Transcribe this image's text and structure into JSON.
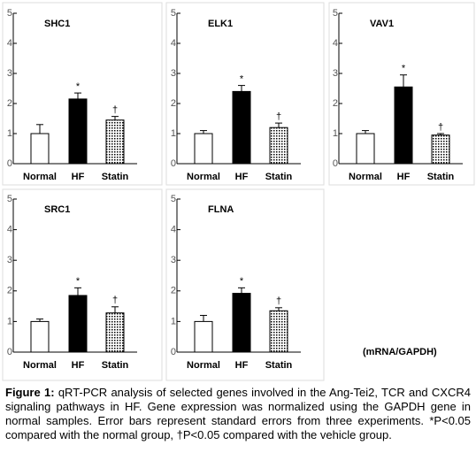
{
  "chart_data": [
    {
      "type": "bar",
      "title": "SHC1",
      "categories": [
        "Normal",
        "HF",
        "Statin"
      ],
      "values": [
        1.0,
        2.15,
        1.45
      ],
      "errors": [
        0.3,
        0.2,
        0.12
      ],
      "significance": [
        null,
        "*",
        "†"
      ],
      "colors": [
        "#ffffff",
        "#000000",
        "#ffffff"
      ],
      "hatch": [
        false,
        false,
        true
      ],
      "ylim": [
        0,
        5
      ],
      "yticks": [
        0,
        1,
        2,
        3,
        4,
        5
      ]
    },
    {
      "type": "bar",
      "title": "ELK1",
      "categories": [
        "Normal",
        "HF",
        "Statin"
      ],
      "values": [
        1.0,
        2.4,
        1.2
      ],
      "errors": [
        0.1,
        0.2,
        0.15
      ],
      "significance": [
        null,
        "*",
        "†"
      ],
      "colors": [
        "#ffffff",
        "#000000",
        "#ffffff"
      ],
      "hatch": [
        false,
        false,
        true
      ],
      "ylim": [
        0,
        5
      ],
      "yticks": [
        0,
        1,
        2,
        3,
        4,
        5
      ]
    },
    {
      "type": "bar",
      "title": "VAV1",
      "categories": [
        "Normal",
        "HF",
        "Statin"
      ],
      "values": [
        1.0,
        2.55,
        0.95
      ],
      "errors": [
        0.1,
        0.4,
        0.05
      ],
      "significance": [
        null,
        "*",
        "†"
      ],
      "colors": [
        "#ffffff",
        "#000000",
        "#ffffff"
      ],
      "hatch": [
        false,
        false,
        true
      ],
      "ylim": [
        0,
        5
      ],
      "yticks": [
        0,
        1,
        2,
        3,
        4,
        5
      ]
    },
    {
      "type": "bar",
      "title": "SRC1",
      "categories": [
        "Normal",
        "HF",
        "Statin"
      ],
      "values": [
        1.0,
        1.85,
        1.28
      ],
      "errors": [
        0.08,
        0.25,
        0.2
      ],
      "significance": [
        null,
        "*",
        "†"
      ],
      "colors": [
        "#ffffff",
        "#000000",
        "#ffffff"
      ],
      "hatch": [
        false,
        false,
        true
      ],
      "ylim": [
        0,
        5
      ],
      "yticks": [
        0,
        1,
        2,
        3,
        4,
        5
      ]
    },
    {
      "type": "bar",
      "title": "FLNA",
      "categories": [
        "Normal",
        "HF",
        "Statin"
      ],
      "values": [
        1.0,
        1.92,
        1.35
      ],
      "errors": [
        0.2,
        0.18,
        0.1
      ],
      "significance": [
        null,
        "*",
        "†"
      ],
      "colors": [
        "#ffffff",
        "#000000",
        "#ffffff"
      ],
      "hatch": [
        false,
        false,
        true
      ],
      "ylim": [
        0,
        5
      ],
      "yticks": [
        0,
        1,
        2,
        3,
        4,
        5
      ]
    }
  ],
  "note": "(mRNA/GAPDH)",
  "caption": {
    "label": "Figure 1:",
    "text": "qRT-PCR analysis of selected genes involved in the Ang-Tei2, TCR and CXCR4 signaling pathways in HF. Gene expression was normalized using the GAPDH gene in normal samples. Error bars represent standard errors from three experiments. *P<0.05 compared with the normal group, †P<0.05 compared with the vehicle group."
  }
}
